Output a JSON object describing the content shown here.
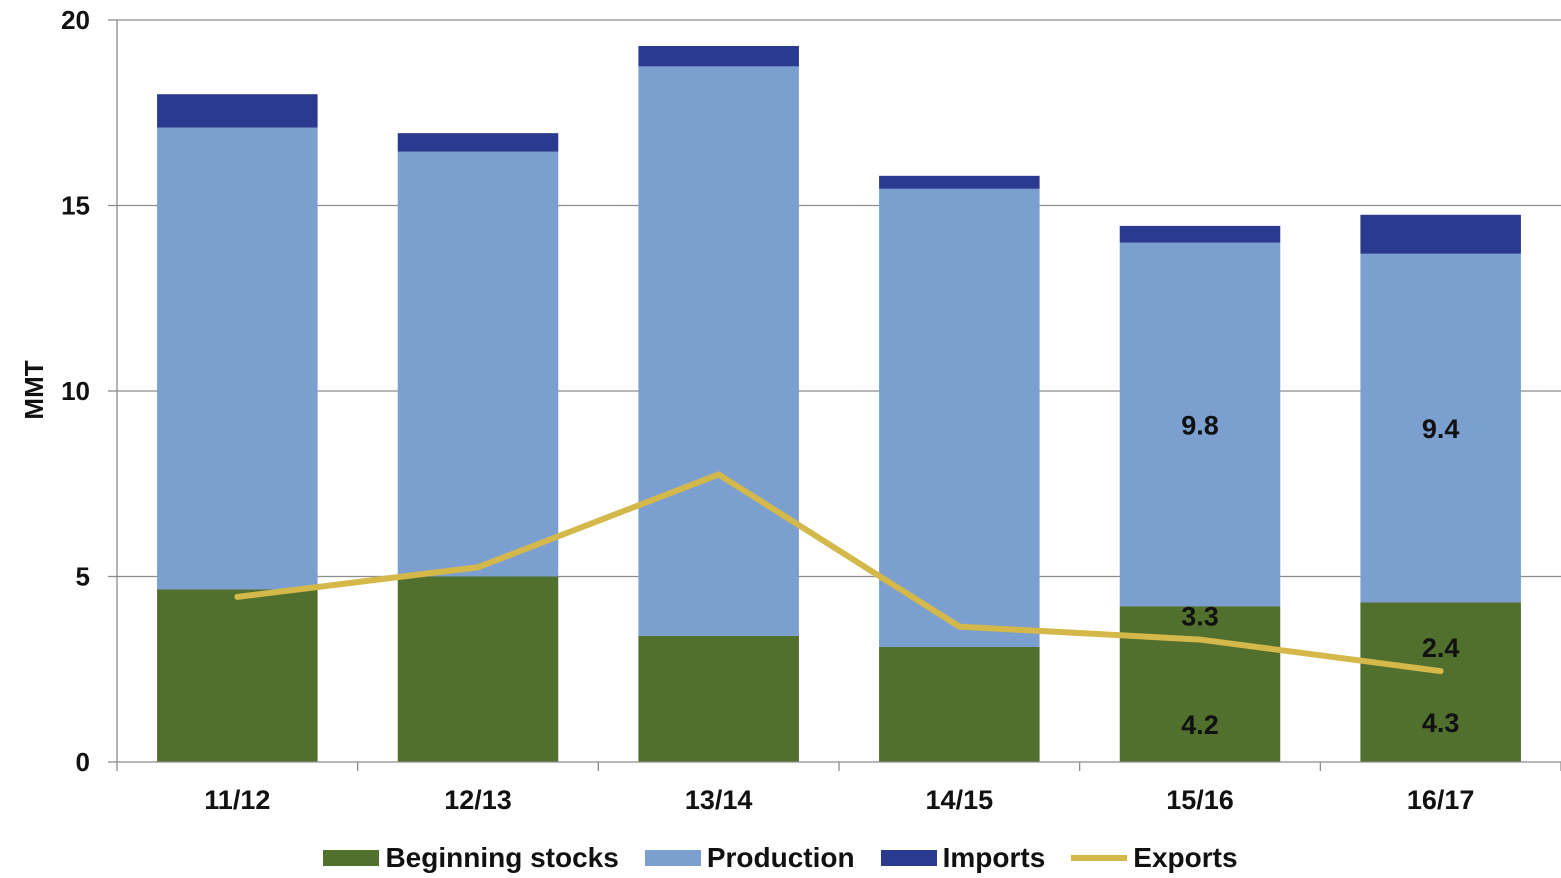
{
  "chart_data": {
    "type": "bar",
    "stacked": true,
    "categories": [
      "11/12",
      "12/13",
      "13/14",
      "14/15",
      "15/16",
      "16/17"
    ],
    "ylabel": "MMT",
    "xlabel": "",
    "ylim": [
      0,
      20
    ],
    "yticks": [
      "0",
      "5",
      "10",
      "15",
      "20"
    ],
    "grid": true,
    "legend_position": "bottom",
    "series": [
      {
        "name": "Beginning stocks",
        "type": "bar",
        "color": "#516f2d",
        "values": [
          4.65,
          5.0,
          3.4,
          3.1,
          4.2,
          4.3
        ]
      },
      {
        "name": "Production",
        "type": "bar",
        "color": "#7b9fcf",
        "values": [
          12.45,
          11.45,
          15.35,
          12.35,
          9.8,
          9.4
        ]
      },
      {
        "name": "Imports",
        "type": "bar",
        "color": "#2a3a8f",
        "values": [
          0.9,
          0.5,
          0.55,
          0.35,
          0.45,
          1.05
        ]
      },
      {
        "name": "Exports",
        "type": "line",
        "color": "#d4b84a",
        "values": [
          4.45,
          5.25,
          7.75,
          3.65,
          3.3,
          2.45
        ]
      }
    ],
    "data_labels": [
      {
        "category": "15/16",
        "series": "Production",
        "text": "9.8"
      },
      {
        "category": "16/17",
        "series": "Production",
        "text": "9.4"
      },
      {
        "category": "15/16",
        "series": "Beginning stocks",
        "text": "4.2"
      },
      {
        "category": "16/17",
        "series": "Beginning stocks",
        "text": "4.3"
      },
      {
        "category": "15/16",
        "series": "Exports",
        "text": "3.3"
      },
      {
        "category": "16/17",
        "series": "Exports",
        "text": "2.4"
      }
    ]
  },
  "legend": {
    "items": [
      {
        "label": "Beginning stocks",
        "color": "#516f2d",
        "kind": "bar"
      },
      {
        "label": "Production",
        "color": "#7b9fcf",
        "kind": "bar"
      },
      {
        "label": "Imports",
        "color": "#2a3a8f",
        "kind": "bar"
      },
      {
        "label": "Exports",
        "color": "#d4b84a",
        "kind": "line"
      }
    ]
  }
}
